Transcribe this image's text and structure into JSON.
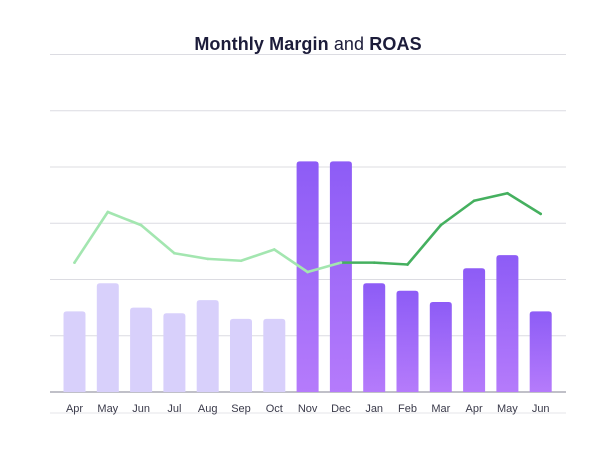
{
  "chart_data": {
    "type": "bar",
    "title": {
      "part1": "Monthly Margin",
      "part2": " and ",
      "part3": "ROAS"
    },
    "categories": [
      "Apr",
      "May",
      "Jun",
      "Jul",
      "Aug",
      "Sep",
      "Oct",
      "Nov",
      "Dec",
      "Jan",
      "Feb",
      "Mar",
      "Apr",
      "May",
      "Jun"
    ],
    "series": [
      {
        "type": "bar",
        "values": [
          4.3,
          5.8,
          4.5,
          4.2,
          4.9,
          3.9,
          3.9,
          12.3,
          12.3,
          5.8,
          5.4,
          4.8,
          6.6,
          7.3,
          4.3
        ],
        "colors_light": "#d8d0fb",
        "color_top": "#8d5cf6",
        "color_bottom": "#b57bfb",
        "highlight_from_index": 7
      },
      {
        "type": "line",
        "values": [
          6.9,
          9.6,
          8.9,
          7.4,
          7.1,
          7.0,
          7.6,
          6.4,
          6.9,
          6.9,
          6.8,
          8.9,
          10.2,
          10.6,
          9.5
        ],
        "color_light": "#a3e6b0",
        "color_dark": "#45b05f",
        "highlight_from_index": 9
      }
    ],
    "ylim": [
      0,
      15
    ],
    "gridlines": [
      0,
      3,
      6,
      9,
      12,
      15,
      18
    ],
    "grid": true,
    "legend": "none"
  }
}
